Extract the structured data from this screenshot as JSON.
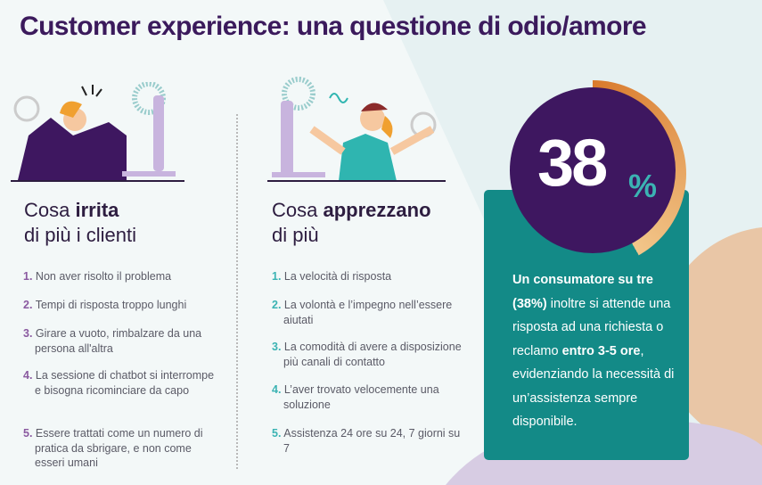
{
  "title": "Customer experience: una questione di odio/amore",
  "left": {
    "heading_pre": "Cosa ",
    "heading_bold": "irrita",
    "heading_line2": "di più i clienti",
    "items": [
      {
        "num": "1.",
        "text": "Non aver risolto il problema"
      },
      {
        "num": "2.",
        "text": "Tempi di risposta troppo lunghi"
      },
      {
        "num": "3.",
        "text": "Girare a vuoto, rimbalzare da una persona all'altra"
      },
      {
        "num": "4.",
        "text": "La sessione di chatbot si interrompe e bisogna ricominciare da capo"
      },
      {
        "num": "5.",
        "text": "Essere trattati come un numero di pratica da sbrigare, e non come esseri umani"
      }
    ]
  },
  "right": {
    "heading_pre": "Cosa ",
    "heading_bold": "apprezzano",
    "heading_line2": "di più",
    "items": [
      {
        "num": "1.",
        "text": "La velocità di risposta"
      },
      {
        "num": "2.",
        "text": "La volontà e l’impegno nell’essere aiutati"
      },
      {
        "num": "3.",
        "text": "La comodità di avere a disposizione più canali di contatto"
      },
      {
        "num": "4.",
        "text": "L’aver trovato velocemente una soluzione"
      },
      {
        "num": "5.",
        "text": "Assistenza 24 ore su 24, 7 giorni su 7"
      }
    ]
  },
  "stat": {
    "value": "38",
    "unit": "%",
    "gauge_percent": 38,
    "text_bold1": "Un consumatore su tre (38%)",
    "text1": " inoltre si attende una risposta ad una richiesta o reclamo ",
    "text_bold2": "entro 3-5 ore",
    "text2": ", evidenziando la necessità di un’assistenza sempre disponibile."
  },
  "colors": {
    "title": "#3b1a5c",
    "teal_box": "#138a87",
    "circle": "#3e1760",
    "accent_teal": "#3bb3b3",
    "accent_purple": "#8a5aa0",
    "gauge": "#e08a3a"
  }
}
